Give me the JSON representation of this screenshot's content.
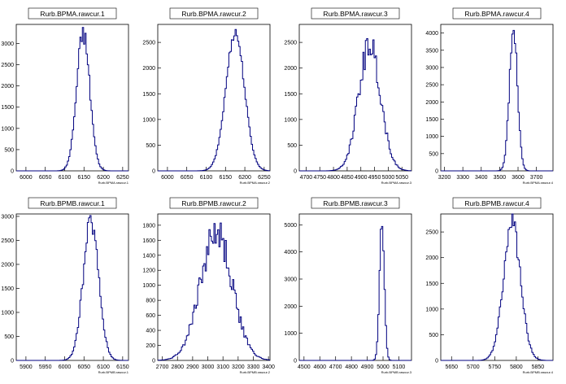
{
  "chart_data": [
    {
      "type": "area",
      "title": "Rurb.BPMA.rawcur.1",
      "xlabel": "Rurb.BPMA.rawcur.1",
      "xticks": [
        6000,
        6050,
        6100,
        6150,
        6200,
        6250
      ],
      "yticks": [
        0,
        500,
        1000,
        1500,
        2000,
        2500,
        3000
      ],
      "xlim": [
        5975,
        6265
      ],
      "ylim": [
        0,
        3450
      ],
      "peak": {
        "center": 6148,
        "sigma": 17,
        "height": 3250
      },
      "noise": 0.08
    },
    {
      "type": "area",
      "title": "Rurb.BPMA.rawcur.2",
      "xlabel": "Rurb.BPMA.rawcur.2",
      "xticks": [
        6000,
        6050,
        6100,
        6150,
        6200,
        6250
      ],
      "yticks": [
        0,
        500,
        1000,
        1500,
        2000,
        2500
      ],
      "xlim": [
        5975,
        6265
      ],
      "ylim": [
        0,
        2850
      ],
      "peak": {
        "center": 6175,
        "sigma": 24,
        "height": 2700
      },
      "noise": 0.04
    },
    {
      "type": "area",
      "title": "Rurb.BPMA.rawcur.3",
      "xlabel": "Rurb.BPMA.rawcur.3",
      "xticks": [
        4700,
        4750,
        4800,
        4850,
        4900,
        4950,
        5000,
        5050
      ],
      "yticks": [
        0,
        500,
        1000,
        1500,
        2000,
        2500
      ],
      "xlim": [
        4675,
        5085
      ],
      "ylim": [
        0,
        2850
      ],
      "peak": {
        "center": 4932,
        "sigma": 40,
        "height": 2450
      },
      "noise": 0.12
    },
    {
      "type": "area",
      "title": "Rurb.BPMA.rawcur.4",
      "xlabel": "Rurb.BPMA.rawcur.4",
      "xticks": [
        3200,
        3300,
        3400,
        3500,
        3600,
        3700
      ],
      "yticks": [
        0,
        500,
        1000,
        1500,
        2000,
        2500,
        3000,
        3500,
        4000
      ],
      "xlim": [
        3180,
        3790
      ],
      "ylim": [
        0,
        4250
      ],
      "peak": {
        "center": 3575,
        "sigma": 22,
        "height": 4050
      },
      "noise": 0.07
    },
    {
      "type": "area",
      "title": "Rurb.BPMB.rawcur.1",
      "xlabel": "Rurb.BPMB.rawcur.1",
      "xticks": [
        5900,
        5950,
        6000,
        6050,
        6100,
        6150
      ],
      "yticks": [
        0,
        500,
        1000,
        1500,
        2000,
        2500,
        3000
      ],
      "xlim": [
        5875,
        6165
      ],
      "ylim": [
        0,
        3050
      ],
      "peak": {
        "center": 6068,
        "sigma": 20,
        "height": 2900
      },
      "noise": 0.08
    },
    {
      "type": "area",
      "title": "Rurb.BPMB.rawcur.2",
      "xlabel": "Rurb.BPMB.rawcur.2",
      "xticks": [
        2700,
        2800,
        2900,
        3000,
        3100,
        3200,
        3300,
        3400
      ],
      "yticks": [
        0,
        200,
        400,
        600,
        800,
        1000,
        1200,
        1400,
        1600,
        1800
      ],
      "xlim": [
        2670,
        3410
      ],
      "ylim": [
        0,
        1950
      ],
      "peak": {
        "center": 3055,
        "sigma": 105,
        "height": 1700
      },
      "noise": 0.14
    },
    {
      "type": "area",
      "title": "Rurb.BPMB.rawcur.3",
      "xlabel": "Rurb.BPMB.rawcur.3",
      "xticks": [
        4500,
        4600,
        4700,
        4800,
        4900,
        5000,
        5100
      ],
      "yticks": [
        0,
        1000,
        2000,
        3000,
        4000,
        5000
      ],
      "xlim": [
        4470,
        5180
      ],
      "ylim": [
        0,
        5400
      ],
      "peak": {
        "center": 4993,
        "sigma": 15,
        "height": 5200
      },
      "noise": 0.05
    },
    {
      "type": "area",
      "title": "Rurb.BPMB.rawcur.4",
      "xlabel": "Rurb.BPMB.rawcur.4",
      "xticks": [
        5650,
        5700,
        5750,
        5800,
        5850
      ],
      "yticks": [
        0,
        500,
        1000,
        1500,
        2000,
        2500
      ],
      "xlim": [
        5625,
        5885
      ],
      "ylim": [
        0,
        2850
      ],
      "peak": {
        "center": 5790,
        "sigma": 20,
        "height": 2650
      },
      "noise": 0.08
    }
  ],
  "colors": {
    "line": "#00007f",
    "axis": "#000000",
    "background": "#ffffff"
  }
}
